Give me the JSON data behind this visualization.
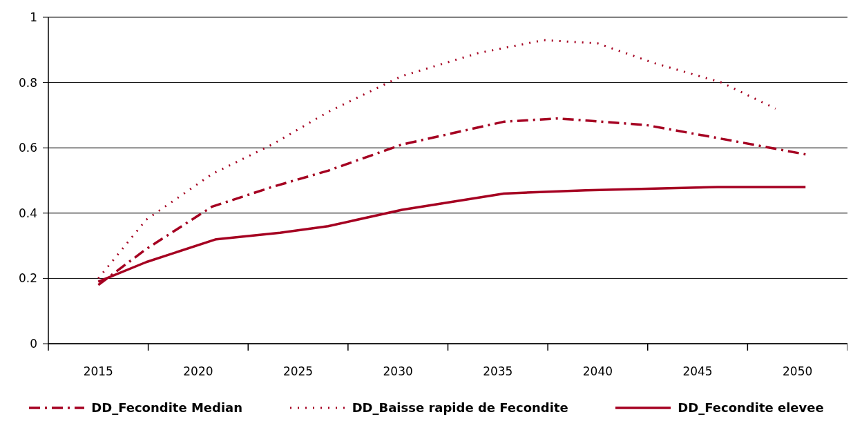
{
  "chart_data": {
    "type": "line",
    "xlim": [
      2012.5,
      2052.5
    ],
    "xticks": [
      {
        "value": 2012.5,
        "label": null
      },
      2015,
      {
        "value": 2017.5,
        "label": null
      },
      2020,
      {
        "value": 2022.5,
        "label": null
      },
      2025,
      {
        "value": 2027.5,
        "label": null
      },
      2030,
      {
        "value": 2032.5,
        "label": null
      },
      2035,
      {
        "value": 2037.5,
        "label": null
      },
      2040,
      {
        "value": 2042.5,
        "label": null
      },
      2045,
      {
        "value": 2047.5,
        "label": null
      },
      2050,
      {
        "value": 2052.5,
        "label": null
      }
    ],
    "ylim": [
      0,
      1
    ],
    "yticks": [
      0,
      0.2,
      0.4,
      0.6,
      0.8,
      1
    ],
    "grid": "y",
    "legend": "bottom",
    "marker": "none",
    "series": [
      {
        "name": "DD_Fecondite Median",
        "color": "#a50021",
        "line_style": "dashdot",
        "x": [
          2015,
          2017.4,
          2020.7,
          2023.7,
          2026.5,
          2030.2,
          2035.3,
          2038,
          2042.4,
          2046,
          2050.4
        ],
        "values": [
          0.18,
          0.29,
          0.42,
          0.48,
          0.53,
          0.61,
          0.68,
          0.69,
          0.67,
          0.63,
          0.58
        ]
      },
      {
        "name": "DD_Baisse rapide de Fecondite",
        "color": "#a50021",
        "line_style": "dotted",
        "x": [
          2015,
          2017.4,
          2020.7,
          2023.7,
          2026.5,
          2030.2,
          2034,
          2037.3,
          2040,
          2042.8,
          2046.2,
          2048.9
        ],
        "values": [
          0.2,
          0.38,
          0.52,
          0.61,
          0.71,
          0.82,
          0.89,
          0.93,
          0.92,
          0.86,
          0.8,
          0.72
        ]
      },
      {
        "name": "DD_Fecondite elevee",
        "color": "#a50021",
        "line_style": "solid",
        "x": [
          2015,
          2017.4,
          2020.9,
          2024.1,
          2026.5,
          2030.2,
          2035.3,
          2039.4,
          2046,
          2050.4
        ],
        "values": [
          0.19,
          0.25,
          0.32,
          0.34,
          0.36,
          0.41,
          0.46,
          0.47,
          0.48,
          0.48
        ]
      }
    ]
  }
}
